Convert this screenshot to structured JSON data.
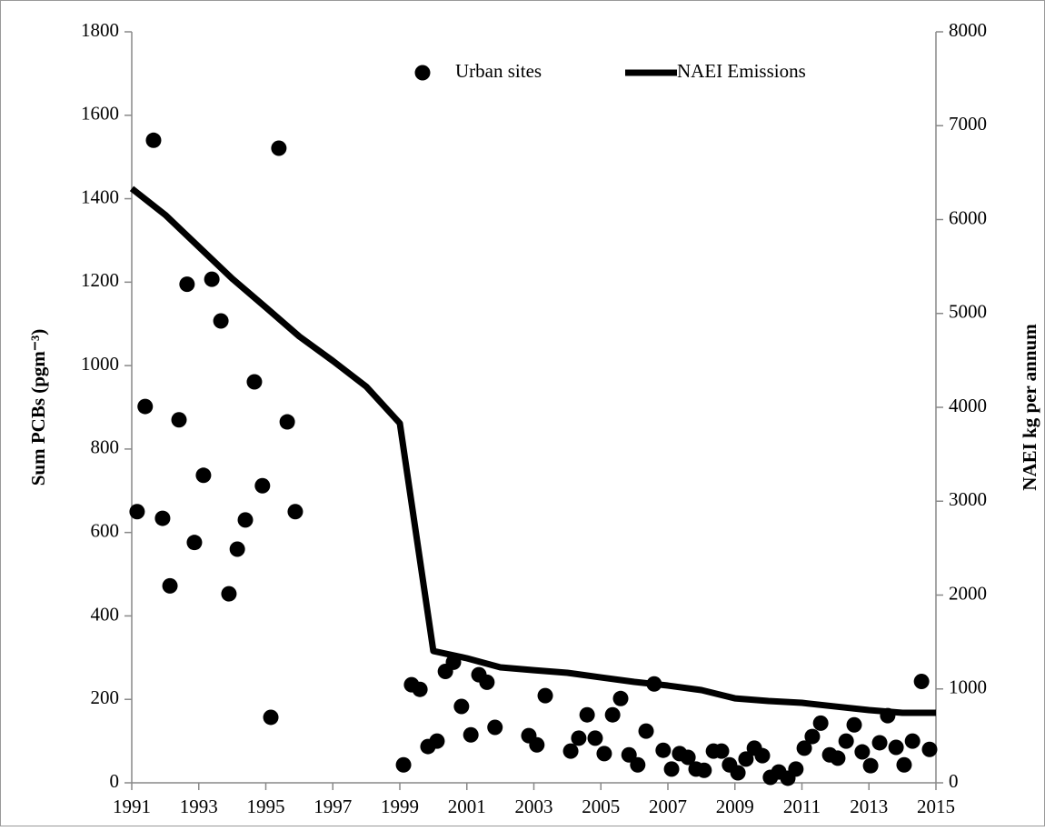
{
  "chart_data": {
    "type": "combo",
    "y_label": "Sum PCBs (pgm⁻³)",
    "y2_label": "NAEI kg per annum",
    "xlim": [
      1991,
      2015
    ],
    "xticks": [
      1991,
      1993,
      1995,
      1997,
      1999,
      2001,
      2003,
      2005,
      2007,
      2009,
      2011,
      2013,
      2015
    ],
    "ylim": [
      0,
      1800
    ],
    "yticks": [
      0,
      200,
      400,
      600,
      800,
      1000,
      1200,
      1400,
      1600,
      1800
    ],
    "y2lim": [
      0,
      8000
    ],
    "y2ticks": [
      0,
      1000,
      2000,
      3000,
      4000,
      5000,
      6000,
      7000,
      8000
    ],
    "grid": false,
    "legend": "top",
    "series": [
      {
        "name": "Urban sites",
        "type": "scatter",
        "color": "#000000",
        "x": [
          1991.16,
          1991.4,
          1991.65,
          1991.92,
          1992.14,
          1992.41,
          1992.65,
          1992.87,
          1993.14,
          1993.39,
          1993.66,
          1993.9,
          1994.15,
          1994.39,
          1994.66,
          1994.9,
          1995.15,
          1995.39,
          1995.64,
          1995.88,
          1999.11,
          1999.35,
          1999.6,
          1999.84,
          2000.11,
          2000.36,
          2000.6,
          2000.84,
          2001.12,
          2001.36,
          2001.6,
          2001.84,
          2002.85,
          2003.09,
          2003.34,
          2004.1,
          2004.34,
          2004.59,
          2004.83,
          2005.1,
          2005.35,
          2005.59,
          2005.84,
          2006.1,
          2006.35,
          2006.59,
          2006.86,
          2007.11,
          2007.35,
          2007.6,
          2007.84,
          2008.08,
          2008.36,
          2008.6,
          2008.84,
          2009.09,
          2009.33,
          2009.58,
          2009.82,
          2010.06,
          2010.31,
          2010.58,
          2010.82,
          2011.07,
          2011.31,
          2011.56,
          2011.83,
          2012.07,
          2012.32,
          2012.56,
          2012.8,
          2013.05,
          2013.32,
          2013.56,
          2013.81,
          2014.05,
          2014.3,
          2014.57,
          2014.81
        ],
        "values": [
          650,
          902,
          1540,
          634,
          472,
          870,
          1195,
          576,
          737,
          1207,
          1107,
          453,
          560,
          630,
          961,
          712,
          157,
          1521,
          865,
          650,
          43,
          235,
          224,
          87,
          100,
          267,
          289,
          183,
          115,
          259,
          241,
          133,
          113,
          91,
          209,
          76,
          107,
          163,
          107,
          70,
          163,
          202,
          67,
          43,
          124,
          237,
          78,
          33,
          70,
          61,
          33,
          30,
          76,
          76,
          43,
          24,
          57,
          83,
          65,
          13,
          26,
          11,
          33,
          83,
          111,
          143,
          67,
          59,
          100,
          139,
          74,
          41,
          96,
          161,
          85,
          43,
          100,
          243,
          80
        ]
      },
      {
        "name": "NAEI Emissions",
        "type": "line",
        "axis": "y2",
        "color": "#000000",
        "x": [
          1991,
          1992,
          1993,
          1994,
          1995,
          1996,
          1997,
          1998,
          1999,
          2000,
          2001,
          2002,
          2003,
          2004,
          2005,
          2006,
          2007,
          2008,
          2009,
          2010,
          2011,
          2012,
          2013,
          2014,
          2015
        ],
        "values": [
          6330,
          6050,
          5710,
          5370,
          5065,
          4755,
          4495,
          4220,
          3830,
          1404,
          1327,
          1230,
          1200,
          1172,
          1123,
          1075,
          1036,
          988,
          900,
          872,
          852,
          813,
          775,
          746,
          746
        ]
      }
    ]
  }
}
